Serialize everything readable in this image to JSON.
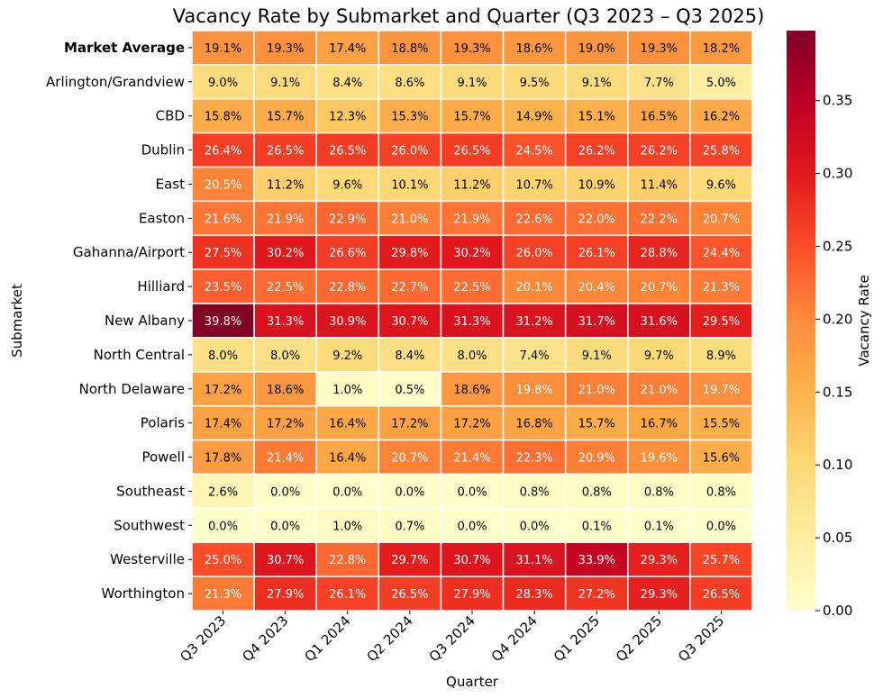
{
  "chart_data": {
    "type": "heatmap",
    "title": "Vacancy Rate by Submarket and Quarter (Q3 2023 – Q3 2025)",
    "xlabel": "Quarter",
    "ylabel": "Submarket",
    "colorbar_label": "Vacancy Rate",
    "colormap": "YlOrRd",
    "colormap_stops": [
      "#ffffcc",
      "#ffeda0",
      "#fed976",
      "#feb24c",
      "#fd8d3c",
      "#fc4e2a",
      "#e31a1c",
      "#bd0026",
      "#800026"
    ],
    "vmin": 0.0,
    "vmax": 0.398,
    "colorbar_ticks": [
      "0.00",
      "0.05",
      "0.10",
      "0.15",
      "0.20",
      "0.25",
      "0.30",
      "0.35"
    ],
    "columns": [
      "Q3 2023",
      "Q4 2023",
      "Q1 2024",
      "Q2 2024",
      "Q3 2024",
      "Q4 2024",
      "Q1 2025",
      "Q2 2025",
      "Q3 2025"
    ],
    "rows": [
      "Market Average",
      "Arlington/Grandview",
      "CBD",
      "Dublin",
      "East",
      "Easton",
      "Gahanna/Airport",
      "Hilliard",
      "New Albany",
      "North Central",
      "North Delaware",
      "Polaris",
      "Powell",
      "Southeast",
      "Southwest",
      "Westerville",
      "Worthington"
    ],
    "bold_rows": [
      "Market Average"
    ],
    "values": [
      [
        19.1,
        19.3,
        17.4,
        18.8,
        19.3,
        18.6,
        19.0,
        19.3,
        18.2
      ],
      [
        9.0,
        9.1,
        8.4,
        8.6,
        9.1,
        9.5,
        9.1,
        7.7,
        5.0
      ],
      [
        15.8,
        15.7,
        12.3,
        15.3,
        15.7,
        14.9,
        15.1,
        16.5,
        16.2
      ],
      [
        26.4,
        26.5,
        26.5,
        26.0,
        26.5,
        24.5,
        26.2,
        26.2,
        25.8
      ],
      [
        20.5,
        11.2,
        9.6,
        10.1,
        11.2,
        10.7,
        10.9,
        11.4,
        9.6
      ],
      [
        21.6,
        21.9,
        22.9,
        21.0,
        21.9,
        22.6,
        22.0,
        22.2,
        20.7
      ],
      [
        27.5,
        30.2,
        26.6,
        29.8,
        30.2,
        26.0,
        26.1,
        28.8,
        24.4
      ],
      [
        23.5,
        22.5,
        22.8,
        22.7,
        22.5,
        20.1,
        20.4,
        20.7,
        21.3
      ],
      [
        39.8,
        31.3,
        30.9,
        30.7,
        31.3,
        31.2,
        31.7,
        31.6,
        29.5
      ],
      [
        8.0,
        8.0,
        9.2,
        8.4,
        8.0,
        7.4,
        9.1,
        9.7,
        8.9
      ],
      [
        17.2,
        18.6,
        1.0,
        0.5,
        18.6,
        19.8,
        21.0,
        21.0,
        19.7
      ],
      [
        17.4,
        17.2,
        16.4,
        17.2,
        17.2,
        16.8,
        15.7,
        16.7,
        15.5
      ],
      [
        17.8,
        21.4,
        16.4,
        20.7,
        21.4,
        22.3,
        20.9,
        19.6,
        15.6
      ],
      [
        2.6,
        0.0,
        0.0,
        0.0,
        0.0,
        0.8,
        0.8,
        0.8,
        0.8
      ],
      [
        0.0,
        0.0,
        1.0,
        0.7,
        0.0,
        0.0,
        0.1,
        0.1,
        0.0
      ],
      [
        25.0,
        30.7,
        22.8,
        29.7,
        30.7,
        31.1,
        33.9,
        29.3,
        25.7
      ],
      [
        21.3,
        27.9,
        26.1,
        26.5,
        27.9,
        28.3,
        27.2,
        29.3,
        26.5
      ]
    ],
    "value_format": "percent, 1 decimal",
    "grid": false,
    "legend": "colorbar right"
  }
}
